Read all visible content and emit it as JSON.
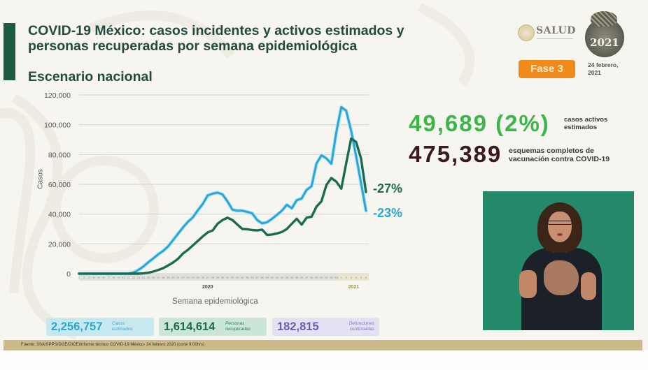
{
  "header": {
    "title_line1": "COVID-19 México: casos incidentes y activos estimados y",
    "title_line2": "personas recuperadas por semana epidemiológica",
    "subtitle": "Escenario nacional"
  },
  "branding": {
    "salud_logo_text": "SALUD",
    "anniversary_logo_text": "2021",
    "phase_badge": "Fase 3",
    "date_line1": "24 febrero,",
    "date_line2": "2021"
  },
  "highlights": [
    {
      "value": "49,689 (2%)",
      "label_line1": "casos activos",
      "label_line2": "estimados",
      "color": "#3cb649"
    },
    {
      "value": "475,389",
      "label_line1": "esquemas completos de",
      "label_line2": "vacunación contra COVID-19",
      "color": "#3b1823"
    }
  ],
  "summary": [
    {
      "value": "2,256,757",
      "label_line1": "Casos",
      "label_line2": "estimados",
      "bg": "#c8e8f0",
      "color": "#2ba5cf"
    },
    {
      "value": "1,614,614",
      "label_line1": "Personas",
      "label_line2": "recuperadas",
      "bg": "#cce5d9",
      "color": "#1f6b4f"
    },
    {
      "value": "182,815",
      "label_line1": "Defunciones",
      "label_line2": "confirmadas",
      "bg": "#e3e1f4",
      "color": "#6a5eb2"
    }
  ],
  "footer": {
    "source": "Fuente: SSA/SPPS/DGE/DIOE/Informe técnico COVID-19 México- 24 febrero 2020 (corte 9:00hrs)"
  },
  "colors": {
    "accent": "#1d5a43",
    "phase_badge": "#f08a1b",
    "footer_bar": "#cdb98a",
    "interpreter_bg": "#23896a",
    "gridline": "#d8d8d2"
  },
  "chart_data": {
    "type": "line",
    "title": "COVID-19 México: casos incidentes y activos estimados y personas recuperadas por semana epidemiológica",
    "subtitle": "Escenario nacional",
    "xlabel": "Semana epidemiológica",
    "ylabel": "Casos",
    "ylim": [
      0,
      120000
    ],
    "yticks": [
      0,
      20000,
      40000,
      60000,
      80000,
      100000,
      120000
    ],
    "ytick_labels": [
      "0",
      "20,000",
      "40,000",
      "60,000",
      "80,000",
      "100,000",
      "120,000"
    ],
    "grid": true,
    "legend": "none",
    "x_groups": [
      {
        "label": "2020",
        "start": 0,
        "end": 52,
        "color": "#444444"
      },
      {
        "label": "2021",
        "start": 53,
        "end": 58,
        "color": "#9b9150"
      }
    ],
    "x": [
      1,
      2,
      3,
      4,
      5,
      6,
      7,
      8,
      9,
      10,
      11,
      12,
      13,
      14,
      15,
      16,
      17,
      18,
      19,
      20,
      21,
      22,
      23,
      24,
      25,
      26,
      27,
      28,
      29,
      30,
      31,
      32,
      33,
      34,
      35,
      36,
      37,
      38,
      39,
      40,
      41,
      42,
      43,
      44,
      45,
      46,
      47,
      48,
      49,
      50,
      51,
      52,
      53,
      1,
      2,
      3,
      4,
      5,
      6
    ],
    "series": [
      {
        "name": "Casos estimados",
        "color": "#29a6d6",
        "end_annotation": "-23%",
        "values": [
          0,
          0,
          0,
          0,
          0,
          0,
          0,
          0,
          0,
          0,
          0,
          800,
          2500,
          4800,
          7700,
          10200,
          13000,
          15300,
          18300,
          22500,
          26800,
          31000,
          34800,
          37800,
          42500,
          46800,
          52500,
          53700,
          54400,
          53200,
          48500,
          43000,
          42300,
          42300,
          41500,
          40500,
          36000,
          33800,
          34500,
          36800,
          39500,
          42300,
          46200,
          43900,
          49300,
          50500,
          56300,
          58700,
          74000,
          79500,
          77400,
          73800,
          95000,
          111800,
          109400,
          96000,
          79000,
          61000,
          42300
        ]
      },
      {
        "name": "Personas recuperadas",
        "color": "#1c6a52",
        "end_annotation": "-27%",
        "values": [
          0,
          0,
          0,
          0,
          0,
          0,
          0,
          0,
          0,
          0,
          0,
          0,
          0,
          200,
          600,
          1400,
          2500,
          3700,
          5500,
          7500,
          10000,
          13500,
          16000,
          19000,
          22000,
          25000,
          27700,
          29000,
          33500,
          36000,
          37600,
          36000,
          33000,
          30000,
          29800,
          29300,
          29000,
          29600,
          26000,
          26300,
          27000,
          28000,
          30000,
          33500,
          36900,
          32900,
          37600,
          38200,
          45000,
          48600,
          59500,
          64200,
          61800,
          57100,
          74000,
          90700,
          88400,
          77400,
          54800
        ]
      }
    ]
  }
}
